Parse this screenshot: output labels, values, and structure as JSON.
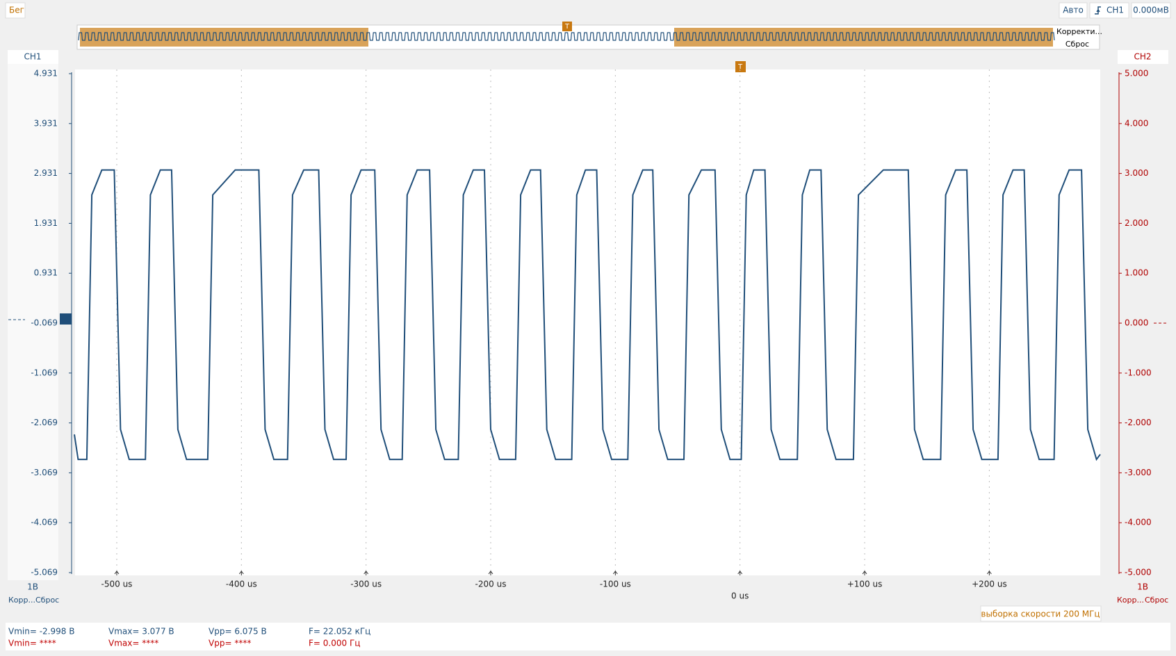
{
  "ui": {
    "status": "Бег",
    "mode": "Авто",
    "trigger_source": "CH1",
    "trigger_level": "0.000мВ",
    "overview_buttons": [
      "Корректи...",
      "Сброс"
    ],
    "left_panel": {
      "scale": "1В",
      "buttons": [
        "Корр...",
        "Сброс"
      ]
    },
    "right_panel": {
      "channel": "CH2",
      "scale": "1В",
      "buttons": [
        "Корр...",
        "Сброс"
      ]
    },
    "sample_rate": "выборка скорости 200 МГц",
    "measurements": {
      "ch1": [
        "Vmin= -2.998 В",
        "Vmax= 3.077 В",
        "Vpp= 6.075 В",
        "F= 22.052 кГц"
      ],
      "ch2": [
        "Vmin= ****",
        "Vmax= ****",
        "Vpp= ****",
        "F= 0.000 Гц"
      ]
    }
  },
  "chart_data": {
    "type": "line",
    "x": [
      -534,
      -531,
      -524,
      -520,
      -512,
      -502,
      -497,
      -490,
      -477,
      -473,
      -465,
      -456,
      -451,
      -444,
      -427,
      -423,
      -405,
      -386,
      -381,
      -374,
      -363,
      -359,
      -350,
      -338,
      -333,
      -326,
      -316,
      -312,
      -304,
      -293,
      -288,
      -281,
      -271,
      -267,
      -259,
      -249,
      -244,
      -237,
      -226,
      -222,
      -214,
      -205,
      -200,
      -193,
      -180,
      -176,
      -168,
      -160,
      -155,
      -148,
      -135,
      -131,
      -124,
      -115,
      -110,
      -103,
      -90,
      -86,
      -78,
      -70,
      -65,
      -58,
      -45,
      -41,
      -31,
      -20,
      -15,
      -8,
      1,
      5,
      11,
      20,
      25,
      32,
      46,
      50,
      56,
      65,
      70,
      77,
      91,
      95,
      115,
      135,
      140,
      147,
      161,
      165,
      173,
      182,
      187,
      194,
      207,
      211,
      219,
      228,
      233,
      240,
      252,
      256,
      264,
      274,
      279,
      286,
      289
    ],
    "series": [
      {
        "name": "CH1",
        "color": "#1f4e79",
        "values": [
          -2.3,
          -2.8,
          -2.8,
          2.5,
          3.0,
          3.0,
          -2.2,
          -2.8,
          -2.8,
          2.5,
          3.0,
          3.0,
          -2.2,
          -2.8,
          -2.8,
          2.5,
          3.0,
          3.0,
          -2.2,
          -2.8,
          -2.8,
          2.5,
          3.0,
          3.0,
          -2.2,
          -2.8,
          -2.8,
          2.5,
          3.0,
          3.0,
          -2.2,
          -2.8,
          -2.8,
          2.5,
          3.0,
          3.0,
          -2.2,
          -2.8,
          -2.8,
          2.5,
          3.0,
          3.0,
          -2.2,
          -2.8,
          -2.8,
          2.5,
          3.0,
          3.0,
          -2.2,
          -2.8,
          -2.8,
          2.5,
          3.0,
          3.0,
          -2.2,
          -2.8,
          -2.8,
          2.5,
          3.0,
          3.0,
          -2.2,
          -2.8,
          -2.8,
          2.5,
          3.0,
          3.0,
          -2.2,
          -2.8,
          -2.8,
          2.5,
          3.0,
          3.0,
          -2.2,
          -2.8,
          -2.8,
          2.5,
          3.0,
          3.0,
          -2.2,
          -2.8,
          -2.8,
          2.5,
          3.0,
          3.0,
          -2.2,
          -2.8,
          -2.8,
          2.5,
          3.0,
          3.0,
          -2.2,
          -2.8,
          -2.8,
          2.5,
          3.0,
          3.0,
          -2.2,
          -2.8,
          -2.8,
          2.5,
          3.0,
          3.0,
          -2.2,
          -2.8,
          -2.7
        ]
      }
    ],
    "xlim": [
      -534,
      289
    ],
    "ylim": [
      -5.069,
      4.931
    ],
    "y2lim": [
      -5,
      5
    ],
    "xticks": [
      {
        "value": -500,
        "label": "-500 us"
      },
      {
        "value": -400,
        "label": "-400 us"
      },
      {
        "value": -300,
        "label": "-300 us"
      },
      {
        "value": -200,
        "label": "-200 us"
      },
      {
        "value": -100,
        "label": "-100 us"
      },
      {
        "value": 0,
        "label": "0 us"
      },
      {
        "value": 100,
        "label": "+100 us"
      },
      {
        "value": 200,
        "label": "+200 us"
      }
    ],
    "yticks": [
      4.931,
      3.931,
      2.931,
      1.931,
      0.931,
      -0.069,
      -1.069,
      -2.069,
      -3.069,
      -4.069,
      -5.069
    ],
    "y2ticks": [
      {
        "value": 5,
        "label": "5.000"
      },
      {
        "value": 4,
        "label": "4.000"
      },
      {
        "value": 3,
        "label": "3.000"
      },
      {
        "value": 2,
        "label": "2.000"
      },
      {
        "value": 1,
        "label": "1.000"
      },
      {
        "value": 0,
        "label": "0.000"
      },
      {
        "value": -1,
        "label": "-1.000"
      },
      {
        "value": -2,
        "label": "-2.000"
      },
      {
        "value": -3,
        "label": "-3.000"
      },
      {
        "value": -4,
        "label": "-4.000"
      },
      {
        "value": -5,
        "label": "-5.000"
      }
    ],
    "grid": true
  }
}
